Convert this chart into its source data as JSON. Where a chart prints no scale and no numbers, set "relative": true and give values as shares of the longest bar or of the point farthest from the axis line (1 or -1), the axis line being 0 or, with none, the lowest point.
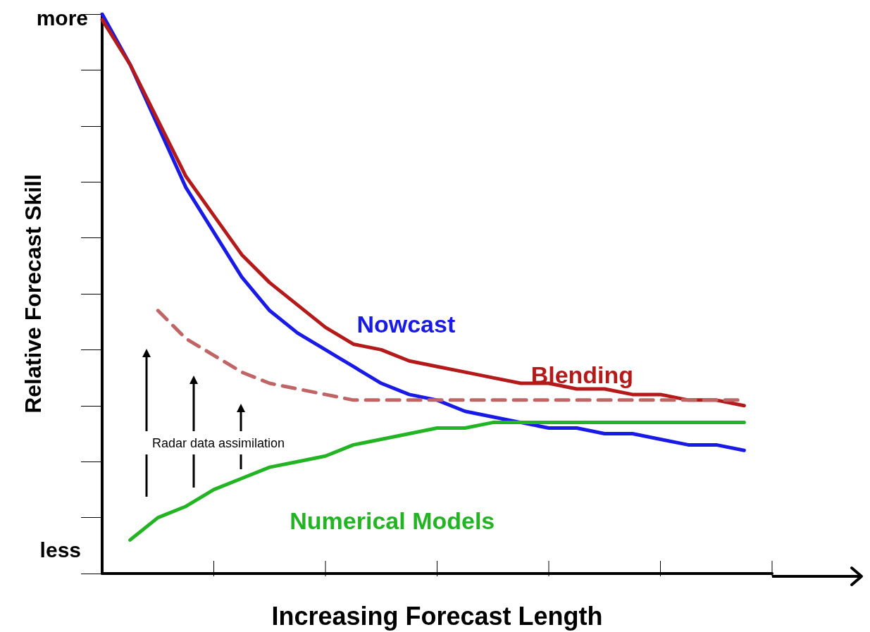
{
  "chart_data": {
    "type": "line",
    "relative": true,
    "xlabel": "Increasing Forecast Length",
    "ylabel": "Relative Forecast Skill",
    "categories": [
      null,
      null,
      null,
      null,
      null,
      null,
      null,
      null,
      null,
      null,
      null,
      null,
      null,
      null,
      null,
      null,
      null,
      null,
      null,
      null,
      null,
      null,
      null,
      null,
      null
    ],
    "series": [
      {
        "name": "Nowcast",
        "color": "#1a1ae6",
        "values": [
          1,
          0.91,
          0.8,
          0.69,
          0.61,
          0.53,
          0.47,
          0.43,
          0.4,
          0.37,
          0.34,
          0.32,
          0.31,
          0.29,
          0.28,
          0.27,
          0.26,
          0.26,
          0.25,
          0.25,
          0.24,
          0.23,
          0.23,
          0.22,
          null
        ]
      },
      {
        "name": "Blending",
        "color": "#b51a1a",
        "values": [
          0.99,
          0.91,
          0.81,
          0.71,
          0.64,
          0.57,
          0.52,
          0.48,
          0.44,
          0.41,
          0.4,
          0.38,
          0.37,
          0.36,
          0.35,
          0.34,
          0.34,
          0.33,
          0.33,
          0.32,
          0.32,
          0.31,
          0.31,
          0.3,
          null
        ]
      },
      {
        "color": "#c06565",
        "line_style": "dashed",
        "values": [
          null,
          null,
          0.47,
          0.42,
          0.39,
          0.36,
          0.34,
          0.33,
          0.32,
          0.31,
          0.31,
          0.31,
          0.31,
          0.31,
          0.31,
          0.31,
          0.31,
          0.31,
          0.31,
          0.31,
          0.31,
          0.31,
          0.31,
          0.31,
          null
        ]
      },
      {
        "name": "Numerical Models",
        "color": "#22b422",
        "values": [
          null,
          0.06,
          0.1,
          0.12,
          0.15,
          0.17,
          0.19,
          0.2,
          0.21,
          0.23,
          0.24,
          0.25,
          0.26,
          0.26,
          0.27,
          0.27,
          0.27,
          0.27,
          0.27,
          0.27,
          0.27,
          0.27,
          0.27,
          0.27,
          null
        ]
      }
    ],
    "annotations": [
      "more",
      "less",
      "Radar data assimilation"
    ],
    "legend": false,
    "grid": false,
    "marker": "none",
    "line_style": "solid"
  }
}
